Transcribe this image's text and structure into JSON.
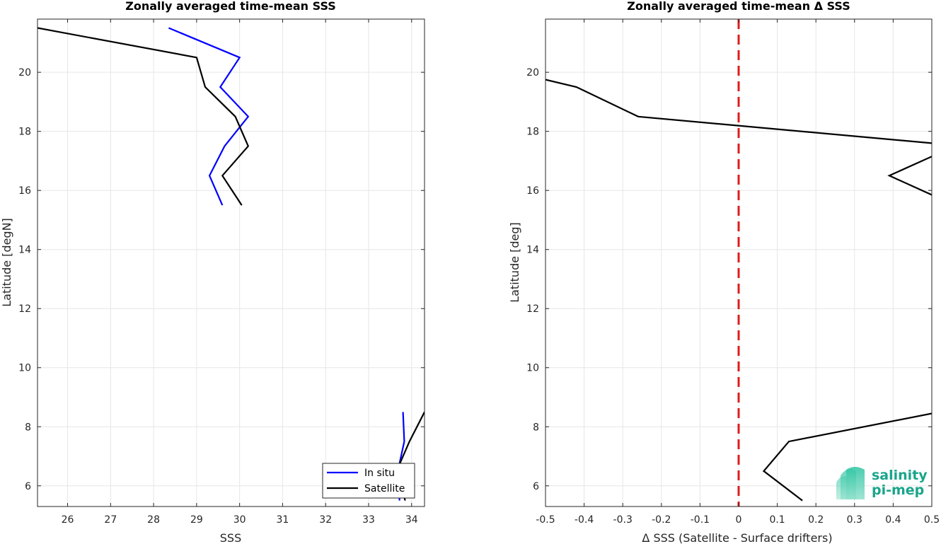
{
  "chart_data": [
    {
      "type": "line",
      "title": "Zonally averaged time-mean SSS",
      "xlabel": "SSS",
      "ylabel": "Latitude [degN]",
      "xlim": [
        25.3,
        34.3
      ],
      "ylim": [
        5.3,
        21.8
      ],
      "xticks": [
        26,
        27,
        28,
        29,
        30,
        31,
        32,
        33,
        34
      ],
      "yticks": [
        6,
        8,
        10,
        12,
        14,
        16,
        18,
        20
      ],
      "grid": true,
      "legend_position": "bottom-right",
      "series": [
        {
          "name": "In situ",
          "color": "#0000ff",
          "segments": [
            [
              [
                28.35,
                21.5
              ],
              [
                30.0,
                20.5
              ],
              [
                29.55,
                19.5
              ],
              [
                30.2,
                18.5
              ],
              [
                29.65,
                17.5
              ],
              [
                29.3,
                16.5
              ],
              [
                29.6,
                15.5
              ]
            ],
            [
              [
                33.8,
                8.5
              ],
              [
                33.83,
                7.5
              ],
              [
                33.68,
                6.5
              ],
              [
                33.72,
                5.5
              ]
            ]
          ]
        },
        {
          "name": "Satellite",
          "color": "#000000",
          "segments": [
            [
              [
                25.3,
                21.5
              ],
              [
                29.0,
                20.5
              ],
              [
                29.2,
                19.5
              ],
              [
                29.9,
                18.5
              ],
              [
                30.2,
                17.5
              ],
              [
                29.6,
                16.5
              ],
              [
                30.05,
                15.5
              ]
            ],
            [
              [
                34.3,
                8.5
              ],
              [
                33.95,
                7.5
              ],
              [
                33.65,
                6.5
              ],
              [
                33.85,
                5.5
              ]
            ]
          ]
        }
      ]
    },
    {
      "type": "line",
      "title": "Zonally averaged time-mean Δ SSS",
      "xlabel": "Δ SSS (Satellite - Surface drifters)",
      "ylabel": "Latitude [deg]",
      "xlim": [
        -0.5,
        0.5
      ],
      "ylim": [
        5.3,
        21.8
      ],
      "xticks": [
        -0.5,
        -0.4,
        -0.3,
        -0.2,
        -0.1,
        0,
        0.1,
        0.2,
        0.3,
        0.4,
        0.5
      ],
      "yticks": [
        6,
        8,
        10,
        12,
        14,
        16,
        18,
        20
      ],
      "grid": true,
      "reference_line": {
        "x": 0,
        "color": "#dd1c1c",
        "style": "dashed"
      },
      "series": [
        {
          "color": "#000000",
          "segments": [
            [
              [
                -0.5,
                19.75
              ],
              [
                -0.42,
                19.5
              ],
              [
                -0.26,
                18.5
              ],
              [
                0.5,
                17.6
              ]
            ],
            [
              [
                0.5,
                17.15
              ],
              [
                0.39,
                16.5
              ],
              [
                0.5,
                15.85
              ]
            ],
            [
              [
                0.5,
                8.45
              ],
              [
                0.13,
                7.5
              ],
              [
                0.065,
                6.5
              ],
              [
                0.165,
                5.5
              ]
            ]
          ]
        }
      ]
    }
  ],
  "logo": {
    "line1": "salinity",
    "line2": "pi-mep"
  }
}
